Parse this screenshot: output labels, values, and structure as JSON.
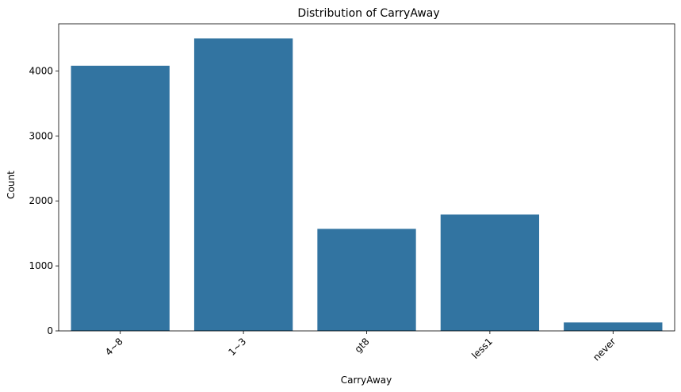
{
  "chart_data": {
    "type": "bar",
    "title": "Distribution of CarryAway",
    "xlabel": "CarryAway",
    "ylabel": "Count",
    "categories": [
      "4~8",
      "1~3",
      "gt8",
      "less1",
      "never"
    ],
    "values": [
      4080,
      4500,
      1570,
      1790,
      130
    ],
    "ylim": [
      0,
      4725
    ],
    "yticks": [
      0,
      1000,
      2000,
      3000,
      4000
    ],
    "grid": false,
    "bar_color": "#3274a1",
    "x_tick_rotation_deg": -45
  }
}
